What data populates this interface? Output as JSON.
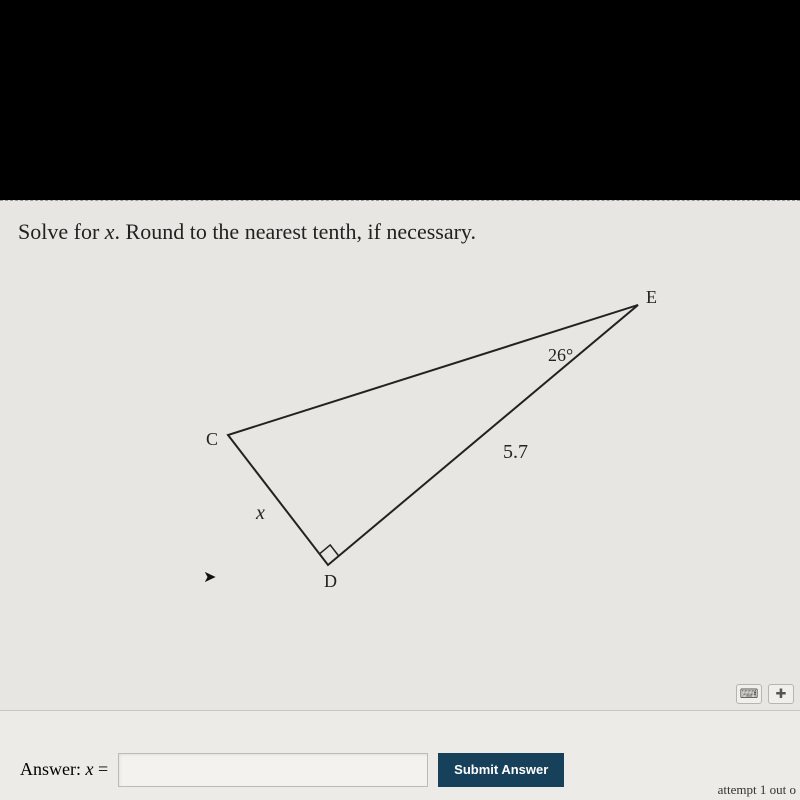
{
  "prompt": {
    "pre": "Solve for ",
    "var": "x",
    "post": ". Round to the nearest tenth, if necessary."
  },
  "triangle": {
    "vertices": {
      "C": "C",
      "D": "D",
      "E": "E"
    },
    "angle_E": "26°",
    "side_DE": "5.7",
    "side_CD_var": "x",
    "coords": {
      "C": [
        210,
        170
      ],
      "D": [
        310,
        300
      ],
      "E": [
        620,
        40
      ]
    },
    "stroke": "#222",
    "stroke_width": 2,
    "right_angle_at": "D",
    "right_angle_size": 14
  },
  "answer": {
    "label_pre": "Answer:  ",
    "var": "x",
    "eq": " =",
    "value": "",
    "placeholder": ""
  },
  "submit": {
    "label": "Submit Answer"
  },
  "icons": {
    "keyboard": "⌨",
    "plus": "✚"
  },
  "attempt_text": "attempt 1 out o"
}
